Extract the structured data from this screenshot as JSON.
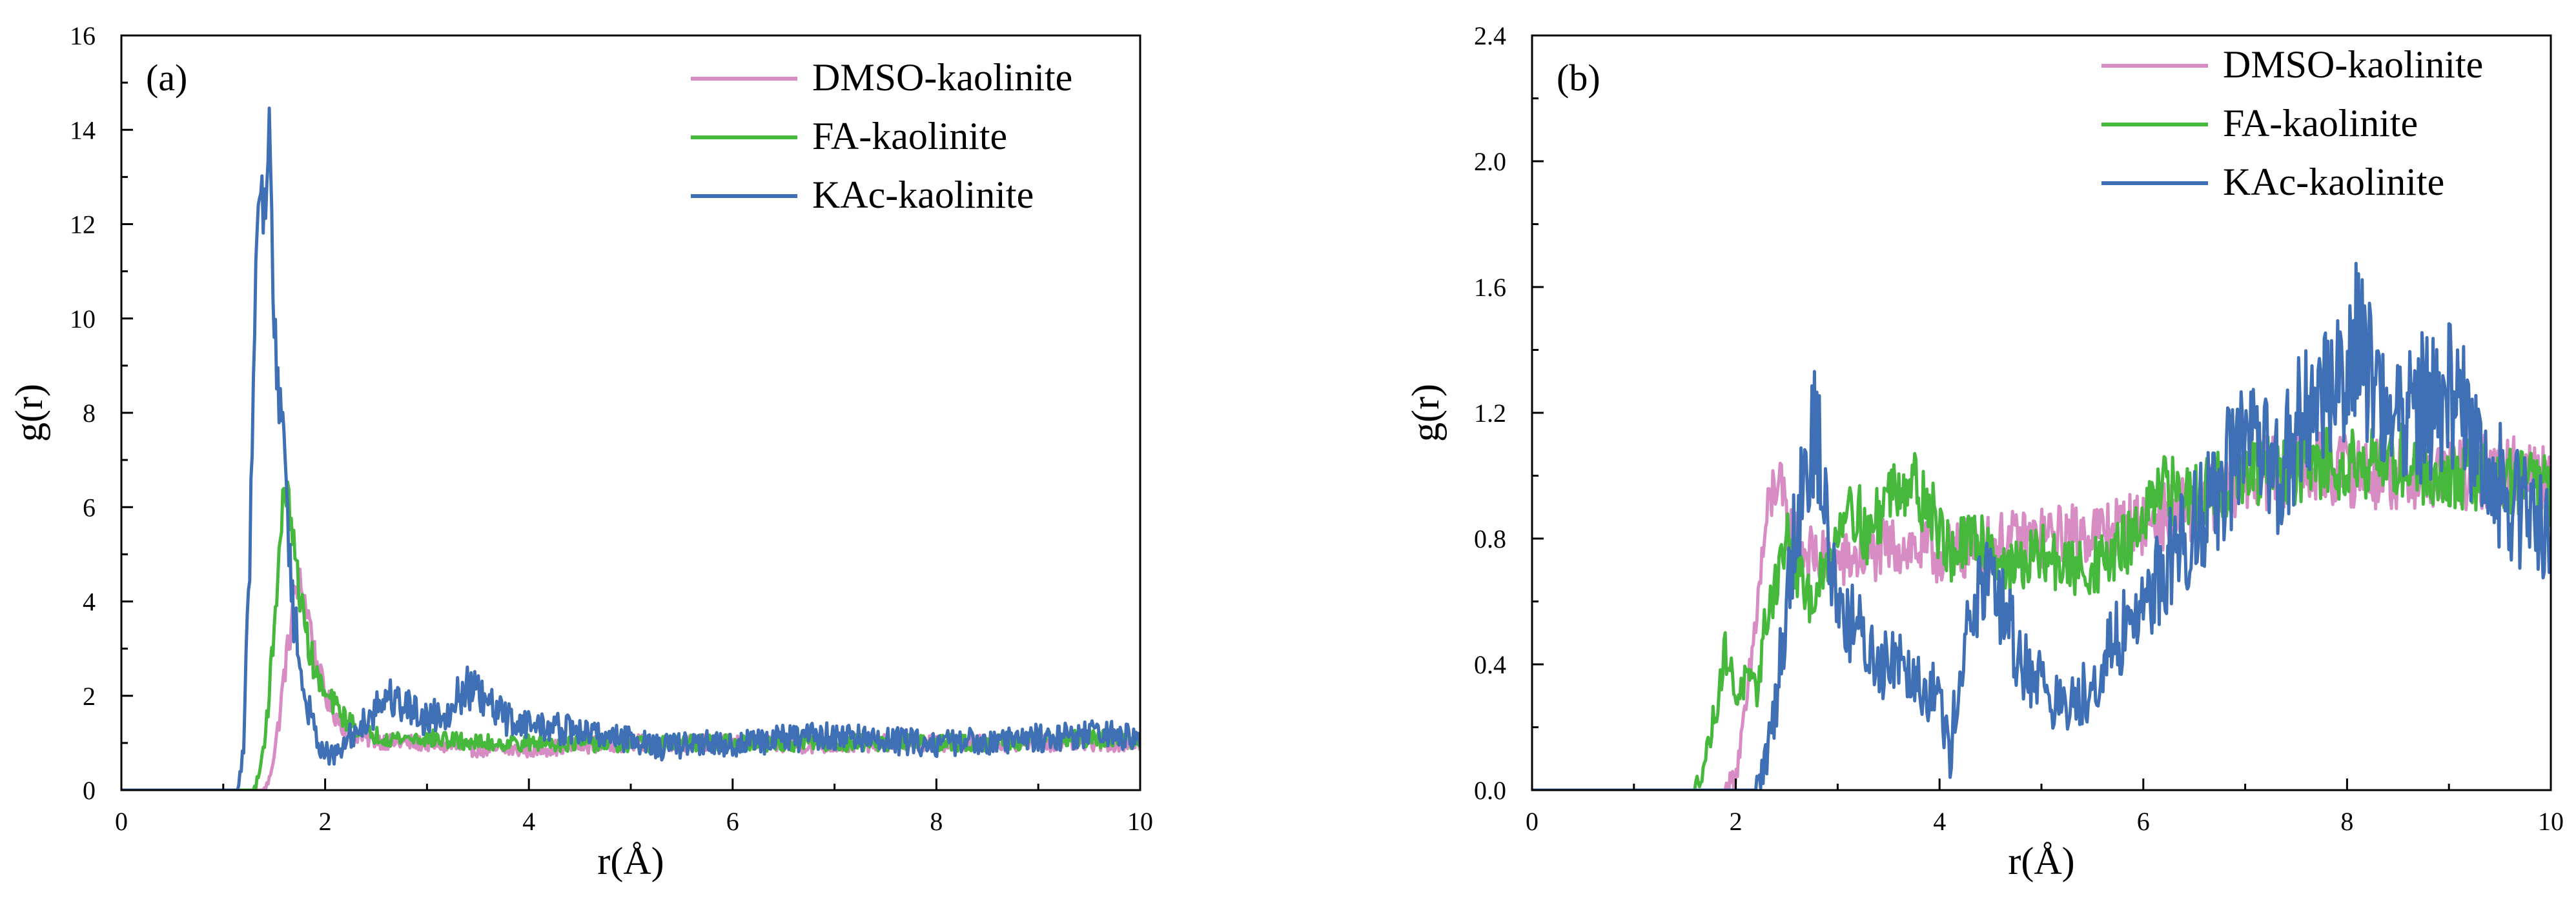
{
  "chart_data": [
    {
      "type": "line",
      "panel_label": "(a)",
      "xlabel": "r(Å)",
      "ylabel": "g(r)",
      "xlim": [
        0,
        10
      ],
      "ylim": [
        0,
        16
      ],
      "xticks": [
        0,
        2,
        4,
        6,
        8,
        10
      ],
      "xtick_labels": [
        "0",
        "2",
        "4",
        "6",
        "8",
        "10"
      ],
      "yticks": [
        0,
        2,
        4,
        6,
        8,
        10,
        12,
        14,
        16
      ],
      "ytick_labels": [
        "0",
        "2",
        "4",
        "6",
        "8",
        "10",
        "12",
        "14",
        "16"
      ],
      "legend_position": "top-right",
      "series": [
        {
          "name": "DMSO-kaolinite",
          "color": "#d78cc4",
          "points": [
            [
              0,
              0
            ],
            [
              1.4,
              0
            ],
            [
              1.45,
              0.2
            ],
            [
              1.5,
              0.8
            ],
            [
              1.55,
              1.5
            ],
            [
              1.6,
              2.5
            ],
            [
              1.65,
              3.2
            ],
            [
              1.7,
              4.2
            ],
            [
              1.75,
              4.4
            ],
            [
              1.8,
              4.0
            ],
            [
              1.85,
              3.6
            ],
            [
              1.9,
              2.8
            ],
            [
              2.0,
              2.0
            ],
            [
              2.1,
              1.6
            ],
            [
              2.2,
              1.3
            ],
            [
              2.4,
              1.1
            ],
            [
              2.7,
              1.0
            ],
            [
              3.0,
              1.0
            ],
            [
              3.3,
              0.9
            ],
            [
              3.6,
              0.85
            ],
            [
              4.0,
              0.85
            ],
            [
              4.5,
              0.95
            ],
            [
              5.0,
              1.0
            ],
            [
              5.5,
              1.0
            ],
            [
              6.0,
              1.0
            ],
            [
              6.5,
              0.95
            ],
            [
              7.0,
              0.95
            ],
            [
              7.5,
              1.0
            ],
            [
              8.0,
              1.0
            ],
            [
              8.5,
              1.0
            ],
            [
              9.0,
              1.0
            ],
            [
              9.5,
              1.0
            ],
            [
              10.0,
              1.0
            ]
          ]
        },
        {
          "name": "FA-kaolinite",
          "color": "#46b93c",
          "points": [
            [
              0,
              0
            ],
            [
              1.3,
              0
            ],
            [
              1.35,
              0.3
            ],
            [
              1.4,
              1.0
            ],
            [
              1.45,
              2.0
            ],
            [
              1.5,
              3.5
            ],
            [
              1.55,
              5.0
            ],
            [
              1.6,
              6.5
            ],
            [
              1.65,
              6.0
            ],
            [
              1.7,
              5.0
            ],
            [
              1.75,
              4.2
            ],
            [
              1.8,
              3.5
            ],
            [
              1.9,
              2.5
            ],
            [
              2.0,
              2.0
            ],
            [
              2.1,
              1.8
            ],
            [
              2.2,
              1.5
            ],
            [
              2.4,
              1.2
            ],
            [
              2.7,
              1.1
            ],
            [
              3.0,
              1.1
            ],
            [
              3.5,
              1.0
            ],
            [
              4.0,
              1.0
            ],
            [
              4.5,
              1.0
            ],
            [
              5.0,
              0.95
            ],
            [
              5.5,
              1.0
            ],
            [
              6.0,
              1.0
            ],
            [
              6.5,
              1.0
            ],
            [
              7.0,
              1.0
            ],
            [
              7.5,
              1.0
            ],
            [
              8.0,
              1.0
            ],
            [
              8.5,
              1.0
            ],
            [
              9.0,
              1.05
            ],
            [
              9.5,
              1.1
            ],
            [
              10.0,
              1.05
            ]
          ]
        },
        {
          "name": "KAc-kaolinite",
          "color": "#3f6fb5",
          "points": [
            [
              0,
              0
            ],
            [
              1.15,
              0
            ],
            [
              1.2,
              1.0
            ],
            [
              1.25,
              4.0
            ],
            [
              1.3,
              9.0
            ],
            [
              1.35,
              13.3
            ],
            [
              1.4,
              12.0
            ],
            [
              1.45,
              14.2
            ],
            [
              1.5,
              10.0
            ],
            [
              1.55,
              8.0
            ],
            [
              1.6,
              7.6
            ],
            [
              1.65,
              5.0
            ],
            [
              1.7,
              3.5
            ],
            [
              1.8,
              2.0
            ],
            [
              1.9,
              1.2
            ],
            [
              2.0,
              0.8
            ],
            [
              2.1,
              0.7
            ],
            [
              2.2,
              1.0
            ],
            [
              2.4,
              1.5
            ],
            [
              2.6,
              2.0
            ],
            [
              2.8,
              1.8
            ],
            [
              3.0,
              1.5
            ],
            [
              3.2,
              1.7
            ],
            [
              3.4,
              2.2
            ],
            [
              3.6,
              1.8
            ],
            [
              3.8,
              1.5
            ],
            [
              4.0,
              1.4
            ],
            [
              4.3,
              1.3
            ],
            [
              4.6,
              1.2
            ],
            [
              5.0,
              1.1
            ],
            [
              5.3,
              0.9
            ],
            [
              5.6,
              1.0
            ],
            [
              6.0,
              0.95
            ],
            [
              6.5,
              1.1
            ],
            [
              7.0,
              1.15
            ],
            [
              7.5,
              1.05
            ],
            [
              8.0,
              1.0
            ],
            [
              8.5,
              1.05
            ],
            [
              9.0,
              1.1
            ],
            [
              9.5,
              1.2
            ],
            [
              10.0,
              1.1
            ]
          ]
        }
      ]
    },
    {
      "type": "line",
      "panel_label": "(b)",
      "xlabel": "r(Å)",
      "ylabel": "g(r)",
      "xlim": [
        0,
        10
      ],
      "ylim": [
        0,
        2.4
      ],
      "xticks": [
        0,
        2,
        4,
        6,
        8,
        10
      ],
      "xtick_labels": [
        "0",
        "2",
        "4",
        "6",
        "8",
        "10"
      ],
      "yticks": [
        0,
        0.4,
        0.8,
        1.2,
        1.6,
        2.0,
        2.4
      ],
      "ytick_labels": [
        "0.0",
        "0.4",
        "0.8",
        "1.2",
        "1.6",
        "2.0",
        "2.4"
      ],
      "legend_position": "top-right",
      "series": [
        {
          "name": "DMSO-kaolinite",
          "color": "#d78cc4",
          "points": [
            [
              0,
              0
            ],
            [
              1.9,
              0
            ],
            [
              2.0,
              0.05
            ],
            [
              2.1,
              0.25
            ],
            [
              2.2,
              0.55
            ],
            [
              2.3,
              0.85
            ],
            [
              2.4,
              1.0
            ],
            [
              2.5,
              0.85
            ],
            [
              2.7,
              0.75
            ],
            [
              3.0,
              0.72
            ],
            [
              3.3,
              0.75
            ],
            [
              3.6,
              0.78
            ],
            [
              4.0,
              0.75
            ],
            [
              4.5,
              0.78
            ],
            [
              5.0,
              0.8
            ],
            [
              5.5,
              0.82
            ],
            [
              6.0,
              0.85
            ],
            [
              6.5,
              0.9
            ],
            [
              7.0,
              1.0
            ],
            [
              7.5,
              1.02
            ],
            [
              8.0,
              1.02
            ],
            [
              8.5,
              1.0
            ],
            [
              9.0,
              1.0
            ],
            [
              9.5,
              1.02
            ],
            [
              10.0,
              1.0
            ]
          ]
        },
        {
          "name": "FA-kaolinite",
          "color": "#46b93c",
          "points": [
            [
              0,
              0
            ],
            [
              1.6,
              0
            ],
            [
              1.7,
              0.1
            ],
            [
              1.8,
              0.25
            ],
            [
              1.9,
              0.45
            ],
            [
              2.0,
              0.3
            ],
            [
              2.1,
              0.35
            ],
            [
              2.2,
              0.3
            ],
            [
              2.3,
              0.55
            ],
            [
              2.5,
              0.8
            ],
            [
              2.7,
              0.6
            ],
            [
              2.9,
              0.7
            ],
            [
              3.1,
              0.95
            ],
            [
              3.3,
              0.8
            ],
            [
              3.5,
              0.95
            ],
            [
              3.7,
              1.0
            ],
            [
              3.9,
              0.9
            ],
            [
              4.1,
              0.75
            ],
            [
              4.4,
              0.8
            ],
            [
              4.7,
              0.7
            ],
            [
              5.0,
              0.75
            ],
            [
              5.3,
              0.7
            ],
            [
              5.6,
              0.72
            ],
            [
              5.9,
              0.8
            ],
            [
              6.2,
              0.95
            ],
            [
              6.5,
              0.95
            ],
            [
              6.8,
              0.98
            ],
            [
              7.1,
              1.0
            ],
            [
              7.5,
              1.02
            ],
            [
              8.0,
              1.05
            ],
            [
              8.5,
              1.05
            ],
            [
              9.0,
              1.0
            ],
            [
              9.5,
              1.0
            ],
            [
              10.0,
              0.95
            ]
          ]
        },
        {
          "name": "KAc-kaolinite",
          "color": "#3f6fb5",
          "points": [
            [
              0,
              0
            ],
            [
              2.2,
              0
            ],
            [
              2.3,
              0.1
            ],
            [
              2.4,
              0.3
            ],
            [
              2.5,
              0.6
            ],
            [
              2.6,
              0.9
            ],
            [
              2.7,
              1.05
            ],
            [
              2.8,
              1.15
            ],
            [
              2.9,
              0.8
            ],
            [
              3.0,
              0.6
            ],
            [
              3.2,
              0.5
            ],
            [
              3.4,
              0.4
            ],
            [
              3.6,
              0.45
            ],
            [
              3.8,
              0.35
            ],
            [
              4.0,
              0.3
            ],
            [
              4.1,
              0.1
            ],
            [
              4.2,
              0.4
            ],
            [
              4.4,
              0.65
            ],
            [
              4.6,
              0.6
            ],
            [
              4.8,
              0.4
            ],
            [
              5.0,
              0.35
            ],
            [
              5.2,
              0.25
            ],
            [
              5.4,
              0.3
            ],
            [
              5.6,
              0.4
            ],
            [
              5.8,
              0.5
            ],
            [
              6.0,
              0.6
            ],
            [
              6.3,
              0.75
            ],
            [
              6.6,
              0.9
            ],
            [
              7.0,
              1.1
            ],
            [
              7.3,
              1.0
            ],
            [
              7.6,
              1.2
            ],
            [
              7.9,
              1.3
            ],
            [
              8.1,
              1.45
            ],
            [
              8.3,
              1.25
            ],
            [
              8.6,
              1.2
            ],
            [
              9.0,
              1.25
            ],
            [
              9.3,
              1.1
            ],
            [
              9.6,
              0.9
            ],
            [
              10.0,
              0.85
            ]
          ]
        }
      ]
    }
  ]
}
